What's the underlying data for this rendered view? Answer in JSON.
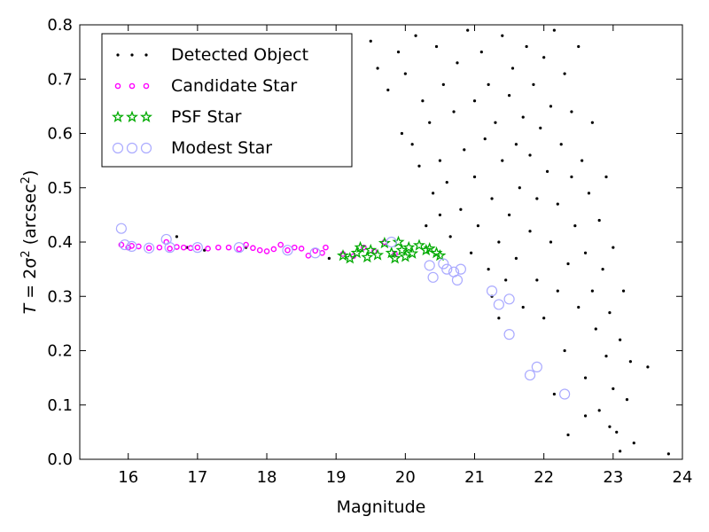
{
  "chart_data": {
    "type": "scatter",
    "xlabel": "Magnitude",
    "ylabel_prefix": "T",
    "ylabel_mid": " = 2σ",
    "ylabel_sup": "2",
    "ylabel_unit": " (arcsec",
    "ylabel_unit_sup": "2",
    "ylabel_close": ")",
    "xlim": [
      15.3,
      24.0
    ],
    "ylim": [
      0.0,
      0.8
    ],
    "xticks": [
      "16",
      "17",
      "18",
      "19",
      "20",
      "21",
      "22",
      "23",
      "24"
    ],
    "yticks": [
      "0.0",
      "0.1",
      "0.2",
      "0.3",
      "0.4",
      "0.5",
      "0.6",
      "0.7",
      "0.8"
    ],
    "grid": false,
    "legend_position": "top-left",
    "series": [
      {
        "name": "Detected Object",
        "marker": "dot",
        "color": "#000000",
        "points": [
          [
            16.7,
            0.41
          ],
          [
            16.85,
            0.39
          ],
          [
            17.1,
            0.385
          ],
          [
            17.7,
            0.39
          ],
          [
            18.9,
            0.37
          ],
          [
            19.5,
            0.77
          ],
          [
            19.6,
            0.72
          ],
          [
            19.75,
            0.68
          ],
          [
            19.9,
            0.75
          ],
          [
            19.95,
            0.6
          ],
          [
            20.0,
            0.71
          ],
          [
            20.1,
            0.58
          ],
          [
            20.15,
            0.78
          ],
          [
            20.2,
            0.54
          ],
          [
            20.25,
            0.66
          ],
          [
            20.3,
            0.43
          ],
          [
            20.35,
            0.62
          ],
          [
            20.4,
            0.49
          ],
          [
            20.45,
            0.76
          ],
          [
            20.5,
            0.45
          ],
          [
            20.5,
            0.55
          ],
          [
            20.55,
            0.69
          ],
          [
            20.6,
            0.51
          ],
          [
            20.65,
            0.41
          ],
          [
            20.7,
            0.64
          ],
          [
            20.75,
            0.73
          ],
          [
            20.8,
            0.46
          ],
          [
            20.85,
            0.57
          ],
          [
            20.9,
            0.79
          ],
          [
            20.95,
            0.38
          ],
          [
            21.0,
            0.66
          ],
          [
            21.0,
            0.52
          ],
          [
            21.05,
            0.43
          ],
          [
            21.1,
            0.75
          ],
          [
            21.15,
            0.59
          ],
          [
            21.2,
            0.35
          ],
          [
            21.2,
            0.69
          ],
          [
            21.25,
            0.48
          ],
          [
            21.3,
            0.62
          ],
          [
            21.35,
            0.4
          ],
          [
            21.4,
            0.78
          ],
          [
            21.4,
            0.55
          ],
          [
            21.45,
            0.33
          ],
          [
            21.5,
            0.67
          ],
          [
            21.5,
            0.45
          ],
          [
            21.55,
            0.72
          ],
          [
            21.6,
            0.58
          ],
          [
            21.6,
            0.37
          ],
          [
            21.65,
            0.5
          ],
          [
            21.7,
            0.63
          ],
          [
            21.7,
            0.28
          ],
          [
            21.75,
            0.76
          ],
          [
            21.8,
            0.42
          ],
          [
            21.8,
            0.56
          ],
          [
            21.85,
            0.69
          ],
          [
            21.9,
            0.33
          ],
          [
            21.9,
            0.48
          ],
          [
            21.95,
            0.61
          ],
          [
            22.0,
            0.74
          ],
          [
            22.0,
            0.26
          ],
          [
            22.05,
            0.53
          ],
          [
            22.1,
            0.4
          ],
          [
            22.1,
            0.65
          ],
          [
            22.15,
            0.79
          ],
          [
            22.2,
            0.31
          ],
          [
            22.2,
            0.47
          ],
          [
            22.25,
            0.58
          ],
          [
            22.3,
            0.71
          ],
          [
            22.3,
            0.2
          ],
          [
            22.35,
            0.36
          ],
          [
            22.4,
            0.52
          ],
          [
            22.4,
            0.64
          ],
          [
            22.45,
            0.43
          ],
          [
            22.5,
            0.28
          ],
          [
            22.5,
            0.76
          ],
          [
            22.55,
            0.55
          ],
          [
            22.6,
            0.38
          ],
          [
            22.6,
            0.15
          ],
          [
            22.65,
            0.49
          ],
          [
            22.7,
            0.62
          ],
          [
            22.7,
            0.31
          ],
          [
            22.75,
            0.24
          ],
          [
            22.8,
            0.44
          ],
          [
            22.8,
            0.09
          ],
          [
            22.85,
            0.35
          ],
          [
            22.9,
            0.19
          ],
          [
            22.9,
            0.52
          ],
          [
            22.95,
            0.27
          ],
          [
            23.0,
            0.13
          ],
          [
            23.0,
            0.39
          ],
          [
            23.05,
            0.05
          ],
          [
            23.1,
            0.22
          ],
          [
            23.15,
            0.31
          ],
          [
            23.2,
            0.11
          ],
          [
            23.25,
            0.18
          ],
          [
            23.3,
            0.03
          ],
          [
            23.5,
            0.17
          ],
          [
            23.8,
            0.01
          ],
          [
            22.35,
            0.045
          ],
          [
            22.6,
            0.08
          ],
          [
            21.25,
            0.3
          ],
          [
            21.35,
            0.26
          ],
          [
            22.15,
            0.12
          ],
          [
            23.1,
            0.015
          ],
          [
            22.95,
            0.06
          ]
        ]
      },
      {
        "name": "Candidate Star",
        "marker": "circle",
        "color": "#ff00ff",
        "points": [
          [
            15.9,
            0.395
          ],
          [
            16.0,
            0.39
          ],
          [
            16.05,
            0.393
          ],
          [
            16.15,
            0.392
          ],
          [
            16.3,
            0.389
          ],
          [
            16.45,
            0.39
          ],
          [
            16.55,
            0.4
          ],
          [
            16.6,
            0.388
          ],
          [
            16.7,
            0.391
          ],
          [
            16.8,
            0.39
          ],
          [
            16.9,
            0.389
          ],
          [
            17.0,
            0.39
          ],
          [
            17.15,
            0.388
          ],
          [
            17.3,
            0.39
          ],
          [
            17.45,
            0.39
          ],
          [
            17.6,
            0.387
          ],
          [
            17.7,
            0.395
          ],
          [
            17.8,
            0.389
          ],
          [
            17.9,
            0.385
          ],
          [
            18.0,
            0.383
          ],
          [
            18.1,
            0.387
          ],
          [
            18.2,
            0.395
          ],
          [
            18.3,
            0.385
          ],
          [
            18.4,
            0.39
          ],
          [
            18.5,
            0.388
          ],
          [
            18.6,
            0.375
          ],
          [
            18.7,
            0.384
          ],
          [
            18.8,
            0.38
          ],
          [
            18.85,
            0.39
          ],
          [
            19.1,
            0.378
          ],
          [
            19.25,
            0.374
          ],
          [
            19.4,
            0.39
          ],
          [
            19.55,
            0.383
          ],
          [
            19.7,
            0.4
          ],
          [
            19.85,
            0.378
          ]
        ]
      },
      {
        "name": "PSF Star",
        "marker": "star",
        "color": "#00aa00",
        "points": [
          [
            19.1,
            0.375
          ],
          [
            19.2,
            0.37
          ],
          [
            19.3,
            0.38
          ],
          [
            19.35,
            0.39
          ],
          [
            19.45,
            0.372
          ],
          [
            19.5,
            0.385
          ],
          [
            19.6,
            0.376
          ],
          [
            19.7,
            0.398
          ],
          [
            19.8,
            0.38
          ],
          [
            19.85,
            0.37
          ],
          [
            19.9,
            0.4
          ],
          [
            19.95,
            0.385
          ],
          [
            20.0,
            0.373
          ],
          [
            20.05,
            0.39
          ],
          [
            20.1,
            0.379
          ],
          [
            20.2,
            0.394
          ],
          [
            20.3,
            0.385
          ],
          [
            20.35,
            0.388
          ],
          [
            20.45,
            0.38
          ],
          [
            20.5,
            0.375
          ]
        ]
      },
      {
        "name": "Modest Star",
        "marker": "ring",
        "color": "#aaaaff",
        "points": [
          [
            15.9,
            0.425
          ],
          [
            15.95,
            0.395
          ],
          [
            16.05,
            0.392
          ],
          [
            16.3,
            0.389
          ],
          [
            16.55,
            0.405
          ],
          [
            16.6,
            0.39
          ],
          [
            17.0,
            0.39
          ],
          [
            17.6,
            0.39
          ],
          [
            18.3,
            0.385
          ],
          [
            18.7,
            0.38
          ],
          [
            19.8,
            0.4
          ],
          [
            20.35,
            0.357
          ],
          [
            20.4,
            0.335
          ],
          [
            20.55,
            0.36
          ],
          [
            20.6,
            0.35
          ],
          [
            20.7,
            0.345
          ],
          [
            20.75,
            0.33
          ],
          [
            20.8,
            0.35
          ],
          [
            21.25,
            0.31
          ],
          [
            21.35,
            0.285
          ],
          [
            21.5,
            0.295
          ],
          [
            21.5,
            0.23
          ],
          [
            21.8,
            0.155
          ],
          [
            21.9,
            0.17
          ],
          [
            22.3,
            0.12
          ]
        ]
      }
    ]
  }
}
